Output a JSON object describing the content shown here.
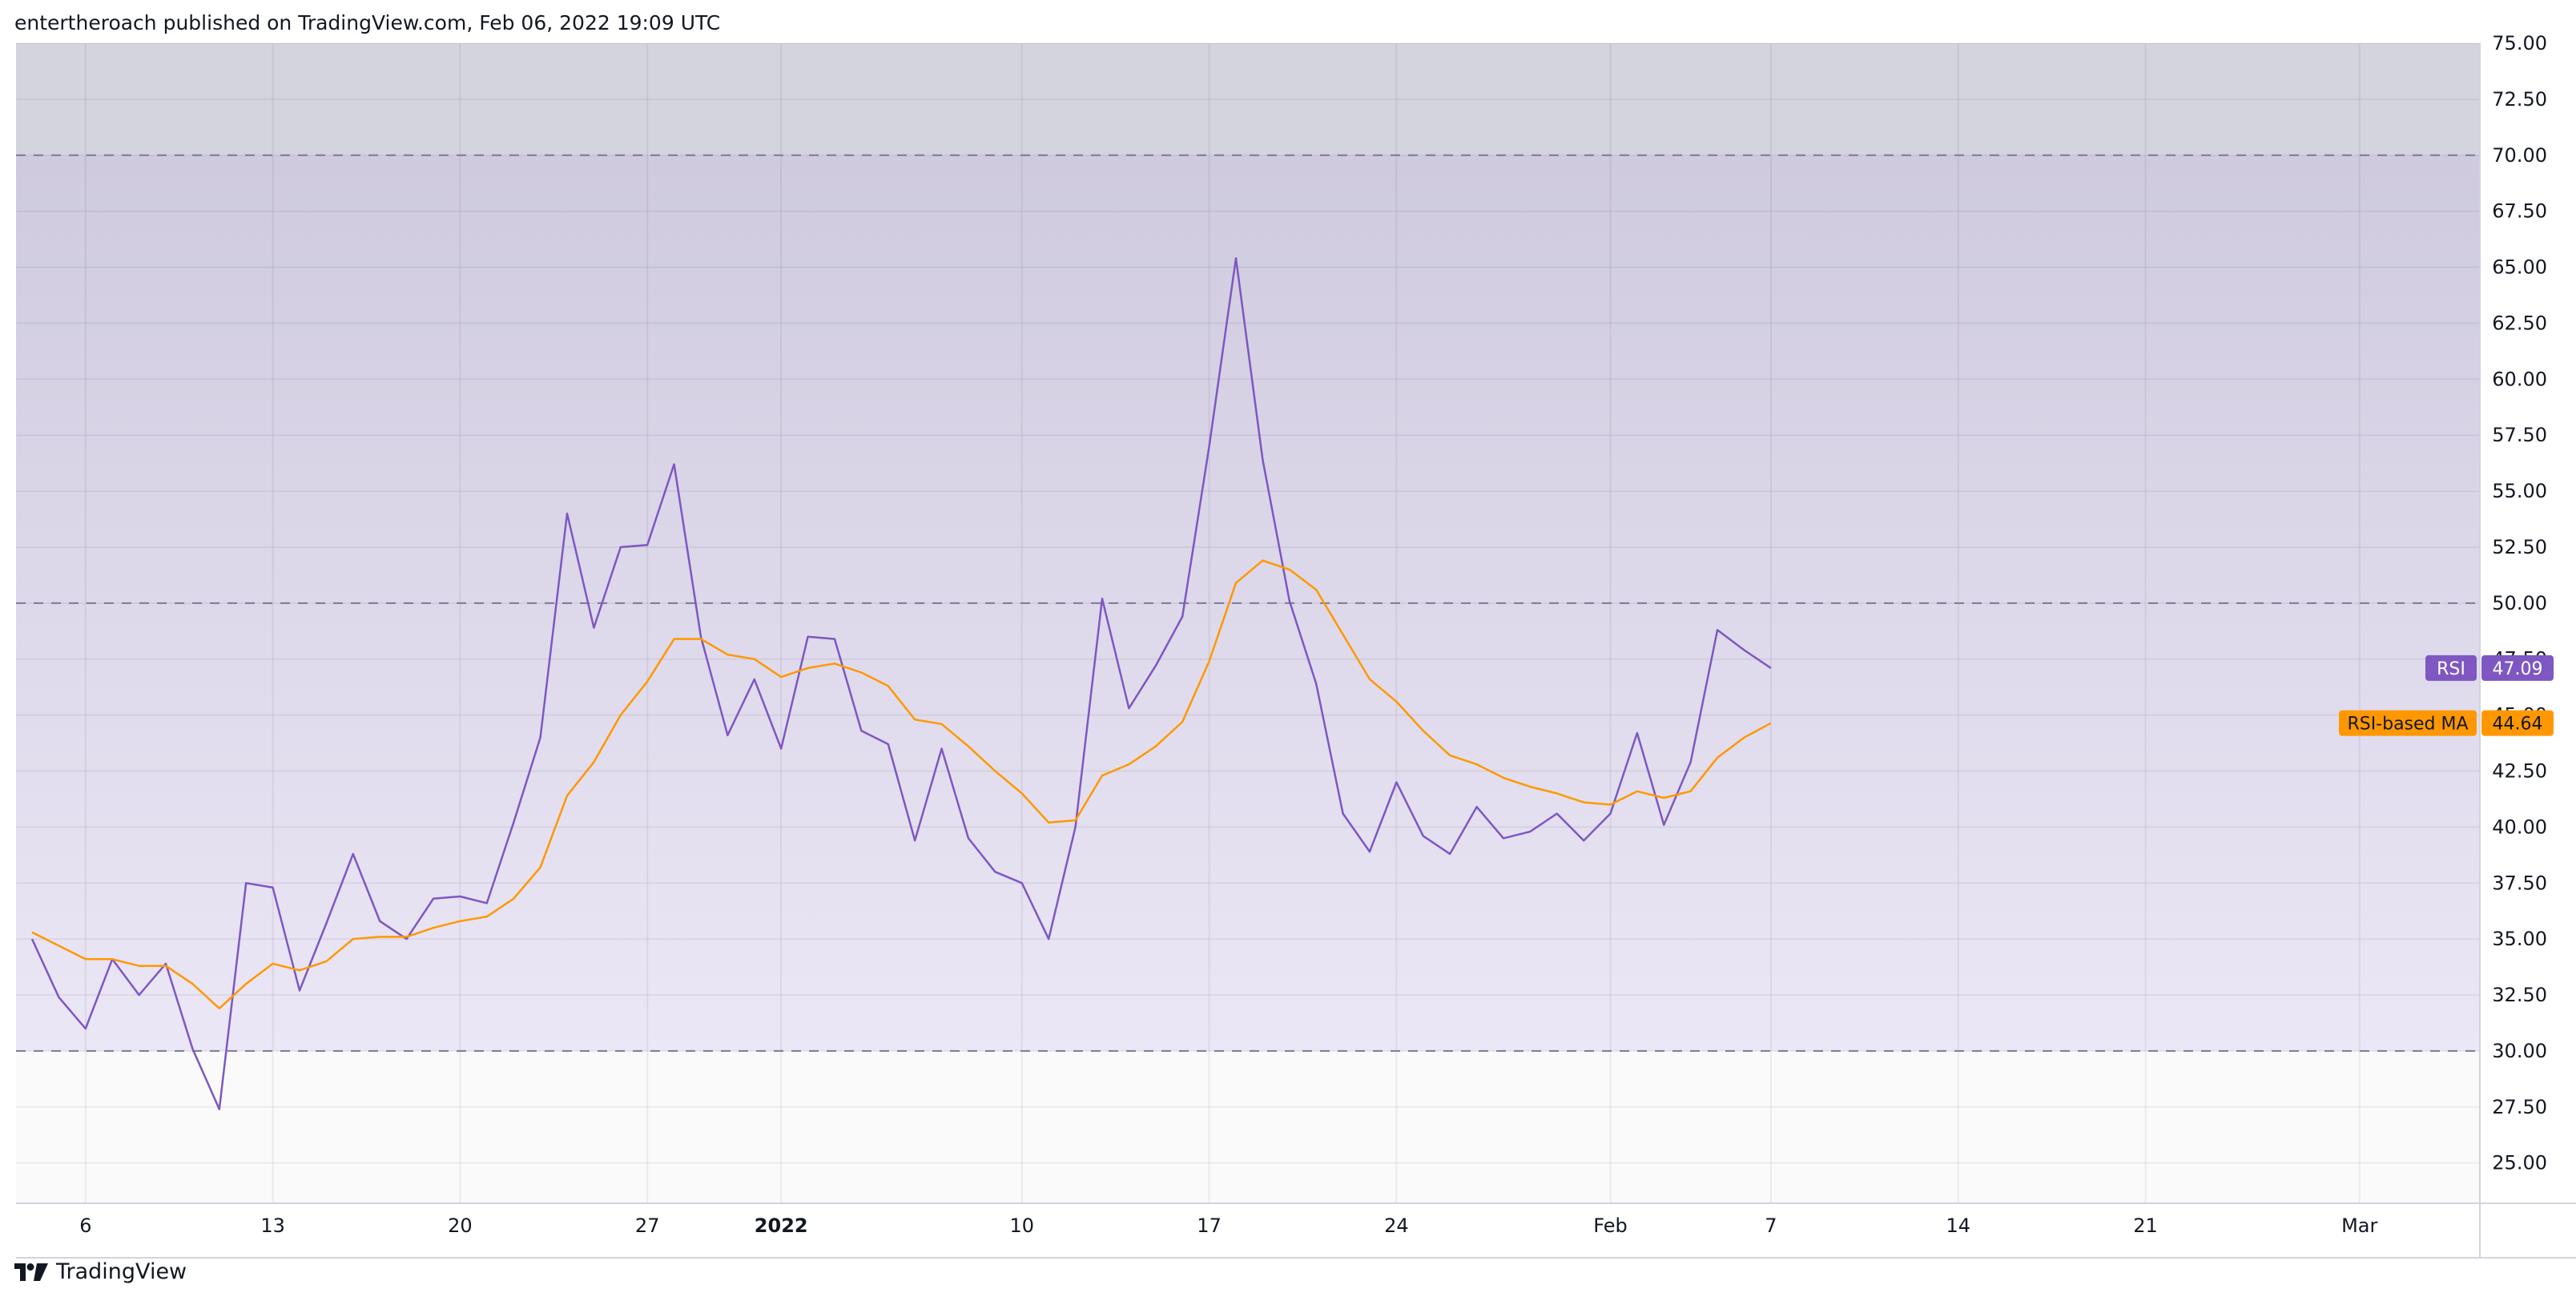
{
  "header": {
    "published": "entertheroach published on TradingView.com, Feb 06, 2022 19:09 UTC"
  },
  "footer": {
    "brand": "TradingView"
  },
  "colors": {
    "rsi": "#7e57c2",
    "ma": "#ff9800",
    "band_fill": "#e8e2f4",
    "grid": "#e6e8ee",
    "level_line": "#7a7a9a"
  },
  "chart_data": {
    "type": "line",
    "title": "",
    "ylim": [
      23.2,
      75.0
    ],
    "y_ticks": [
      75.0,
      72.5,
      70.0,
      67.5,
      65.0,
      62.5,
      60.0,
      57.5,
      55.0,
      52.5,
      50.0,
      47.5,
      45.0,
      42.5,
      40.0,
      37.5,
      35.0,
      32.5,
      30.0,
      27.5,
      25.0
    ],
    "y_tick_labels": [
      "75.00",
      "72.50",
      "70.00",
      "67.50",
      "65.00",
      "62.50",
      "60.00",
      "57.50",
      "55.00",
      "52.50",
      "50.00",
      "47.50",
      "45.00",
      "42.50",
      "40.00",
      "37.50",
      "35.00",
      "32.50",
      "30.00",
      "27.50",
      "25.00"
    ],
    "x_ticks": [
      {
        "label": "6",
        "day": 2
      },
      {
        "label": "13",
        "day": 9
      },
      {
        "label": "20",
        "day": 16
      },
      {
        "label": "27",
        "day": 23
      },
      {
        "label": "2022",
        "day": 28,
        "bold": true
      },
      {
        "label": "10",
        "day": 37
      },
      {
        "label": "17",
        "day": 44
      },
      {
        "label": "24",
        "day": 51
      },
      {
        "label": "Feb",
        "day": 59
      },
      {
        "label": "7",
        "day": 65
      },
      {
        "label": "14",
        "day": 72
      },
      {
        "label": "21",
        "day": 79
      },
      {
        "label": "Mar",
        "day": 87
      }
    ],
    "xlim": [
      -0.6,
      91.5
    ],
    "bands": {
      "upper": 70,
      "middle": 50,
      "lower": 30
    },
    "series": [
      {
        "name": "RSI",
        "values": [
          35.0,
          32.4,
          31.0,
          34.1,
          32.5,
          33.9,
          30.1,
          27.4,
          37.5,
          37.3,
          32.7,
          35.7,
          38.8,
          35.8,
          35.0,
          36.8,
          36.9,
          36.6,
          40.2,
          44.0,
          54.0,
          48.9,
          52.5,
          52.6,
          56.2,
          48.5,
          44.1,
          46.6,
          43.5,
          48.5,
          48.4,
          44.3,
          43.7,
          39.4,
          43.5,
          39.5,
          38.0,
          37.5,
          35.0,
          40.0,
          50.2,
          45.3,
          47.2,
          49.4,
          57.0,
          65.4,
          56.4,
          50.1,
          46.4,
          40.6,
          38.9,
          42.0,
          39.6,
          38.8,
          40.9,
          39.5,
          39.8,
          40.6,
          39.4,
          40.6,
          44.2,
          40.1,
          42.9,
          48.8,
          47.9,
          47.1
        ]
      },
      {
        "name": "RSI-based MA",
        "values": [
          35.3,
          34.7,
          34.1,
          34.1,
          33.8,
          33.8,
          33.0,
          31.9,
          33.0,
          33.9,
          33.6,
          34.0,
          35.0,
          35.1,
          35.1,
          35.5,
          35.8,
          36.0,
          36.8,
          38.2,
          41.4,
          42.9,
          45.0,
          46.5,
          48.4,
          48.4,
          47.7,
          47.5,
          46.7,
          47.1,
          47.3,
          46.9,
          46.3,
          44.8,
          44.6,
          43.6,
          42.5,
          41.5,
          40.2,
          40.3,
          42.3,
          42.8,
          43.6,
          44.7,
          47.4,
          50.9,
          51.9,
          51.5,
          50.6,
          48.6,
          46.6,
          45.6,
          44.3,
          43.2,
          42.8,
          42.2,
          41.8,
          41.5,
          41.1,
          41.0,
          41.6,
          41.3,
          41.6,
          43.1,
          44.0,
          44.64
        ]
      }
    ],
    "last_values": [
      {
        "name": "RSI",
        "label": "47.09"
      },
      {
        "name": "RSI-based MA",
        "label": "44.64"
      }
    ]
  }
}
